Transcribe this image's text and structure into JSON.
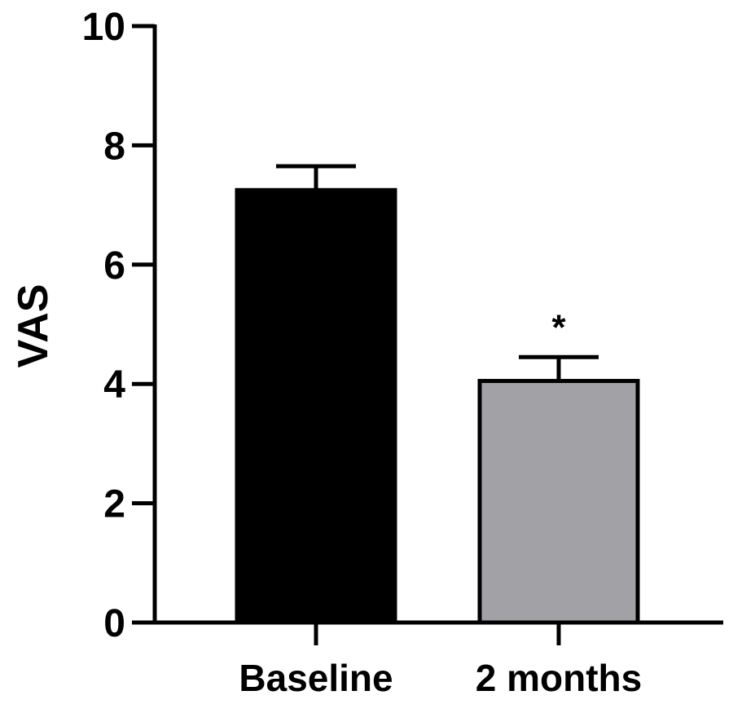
{
  "chart_data": {
    "type": "bar",
    "title": "",
    "xlabel": "",
    "ylabel": "VAS",
    "ylim": [
      0,
      10
    ],
    "yticks": [
      0,
      2,
      4,
      6,
      8,
      10
    ],
    "ytick_labels": [
      "0",
      "2",
      "4",
      "6",
      "8",
      "10"
    ],
    "grid": false,
    "categories": [
      "Baseline",
      "2 months"
    ],
    "values": [
      7.25,
      4.05
    ],
    "error_upper": [
      0.4,
      0.4
    ],
    "bar_colors": [
      "#000000",
      "#a1a1a6"
    ],
    "annotations": [
      "",
      "*"
    ]
  }
}
